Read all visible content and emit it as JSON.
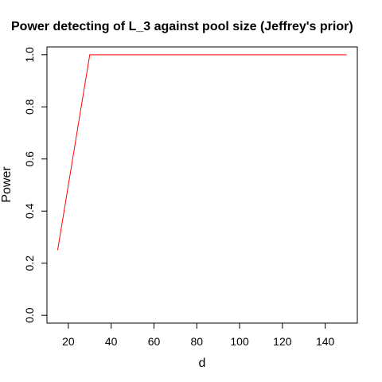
{
  "chart_data": {
    "type": "line",
    "title": "Power detecting of L_3 against pool size (Jeffrey's prior)",
    "xlabel": "d",
    "ylabel": "Power",
    "xlim": [
      10,
      155
    ],
    "ylim": [
      -0.03,
      1.03
    ],
    "x_ticks": [
      20,
      40,
      60,
      80,
      100,
      120,
      140
    ],
    "y_ticks": [
      0.0,
      0.2,
      0.4,
      0.6,
      0.8,
      1.0
    ],
    "x_tick_labels": [
      "20",
      "40",
      "60",
      "80",
      "100",
      "120",
      "140"
    ],
    "y_tick_labels": [
      "0.0",
      "0.2",
      "0.4",
      "0.6",
      "0.8",
      "1.0"
    ],
    "grid": false,
    "series": [
      {
        "color": "#ff0000",
        "x": [
          15,
          30,
          150
        ],
        "y": [
          0.25,
          1.0,
          1.0
        ]
      }
    ]
  }
}
